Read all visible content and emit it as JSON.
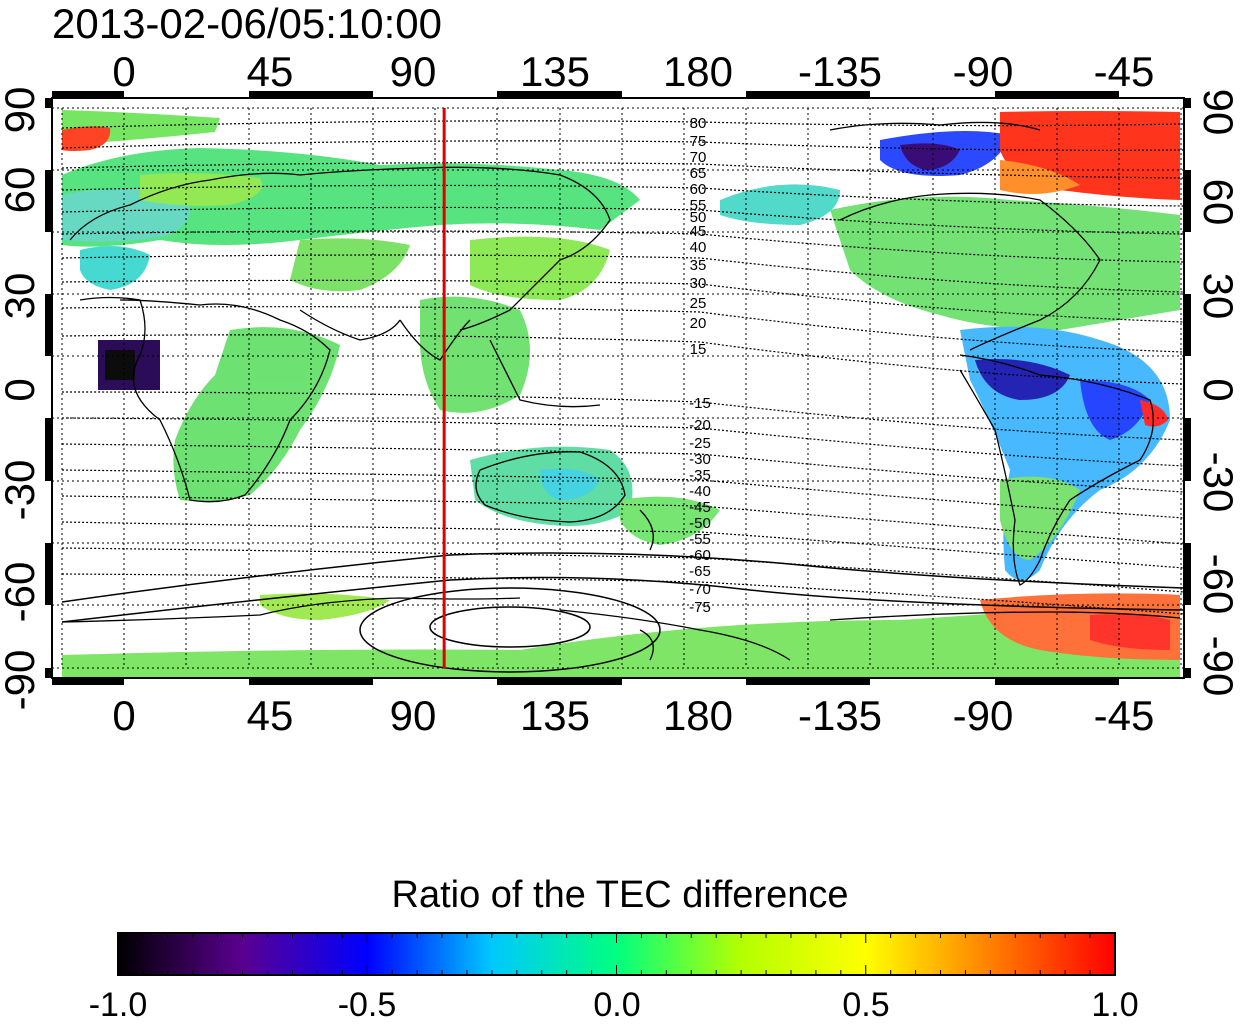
{
  "map": {
    "timestamp": "2013-02-06/05:10:00",
    "longitude_labels": [
      "0",
      "45",
      "90",
      "135",
      "180",
      "-135",
      "-90",
      "-45"
    ],
    "latitude_labels": [
      "90",
      "60",
      "30",
      "0",
      "-30",
      "-60",
      "-90"
    ],
    "contour_labels_north": [
      "80",
      "75",
      "70",
      "65",
      "60",
      "55",
      "50",
      "45",
      "40",
      "35",
      "30",
      "25",
      "20",
      "15"
    ],
    "contour_labels_south": [
      "-15",
      "-20",
      "-25",
      "-30",
      "-35",
      "-40",
      "-45",
      "-50",
      "-55",
      "-60",
      "-65",
      "-70",
      "-75"
    ],
    "meridian_marker_longitude": 103,
    "marker_color": "#e00000"
  },
  "colorbar": {
    "title": "Ratio of the TEC difference",
    "min": -1.0,
    "max": 1.0,
    "tick_labels": [
      "-1.0",
      "-0.5",
      "0.0",
      "0.5",
      "1.0"
    ],
    "stops": [
      "#000000",
      "#5a0090",
      "#0000ff",
      "#00c8ff",
      "#00ff80",
      "#b4ff00",
      "#ffff00",
      "#ff8000",
      "#ff0000"
    ]
  }
}
